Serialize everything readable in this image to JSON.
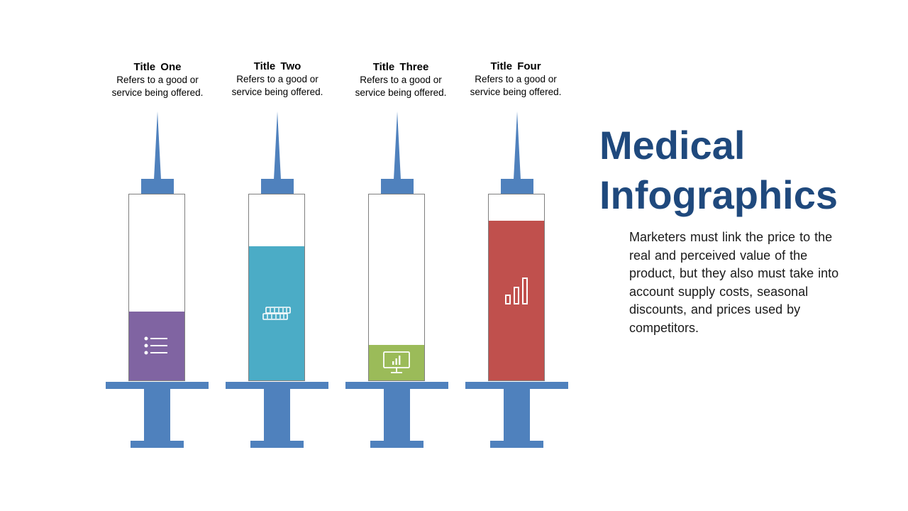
{
  "heading": {
    "line1": "Medical",
    "line2": "Infographics"
  },
  "description": "Marketers must link the price to the real and perceived value of the product, but they also must take into account supply costs, seasonal discounts, and prices used by competitors.",
  "colors": {
    "syringe_blue": "#4f81bd",
    "title_blue": "#1f497d",
    "purple": "#8064a2",
    "teal": "#4bacc6",
    "green": "#9bbb59",
    "red": "#c0504d"
  },
  "syringes": [
    {
      "title": "Title One",
      "description": "Refers to a good or service being offered.",
      "fill_level": 0.37,
      "fill_color": "#8064a2",
      "icon": "list-icon"
    },
    {
      "title": "Title Two",
      "description": "Refers to a good or service being offered.",
      "fill_level": 0.72,
      "fill_color": "#4bacc6",
      "icon": "keyboard-icon"
    },
    {
      "title": "Title Three",
      "description": "Refers to a good or service being offered.",
      "fill_level": 0.19,
      "fill_color": "#9bbb59",
      "icon": "monitor-chart-icon"
    },
    {
      "title": "Title Four",
      "description": "Refers to a good or service being offered.",
      "fill_level": 0.86,
      "fill_color": "#c0504d",
      "icon": "bar-chart-icon"
    }
  ]
}
